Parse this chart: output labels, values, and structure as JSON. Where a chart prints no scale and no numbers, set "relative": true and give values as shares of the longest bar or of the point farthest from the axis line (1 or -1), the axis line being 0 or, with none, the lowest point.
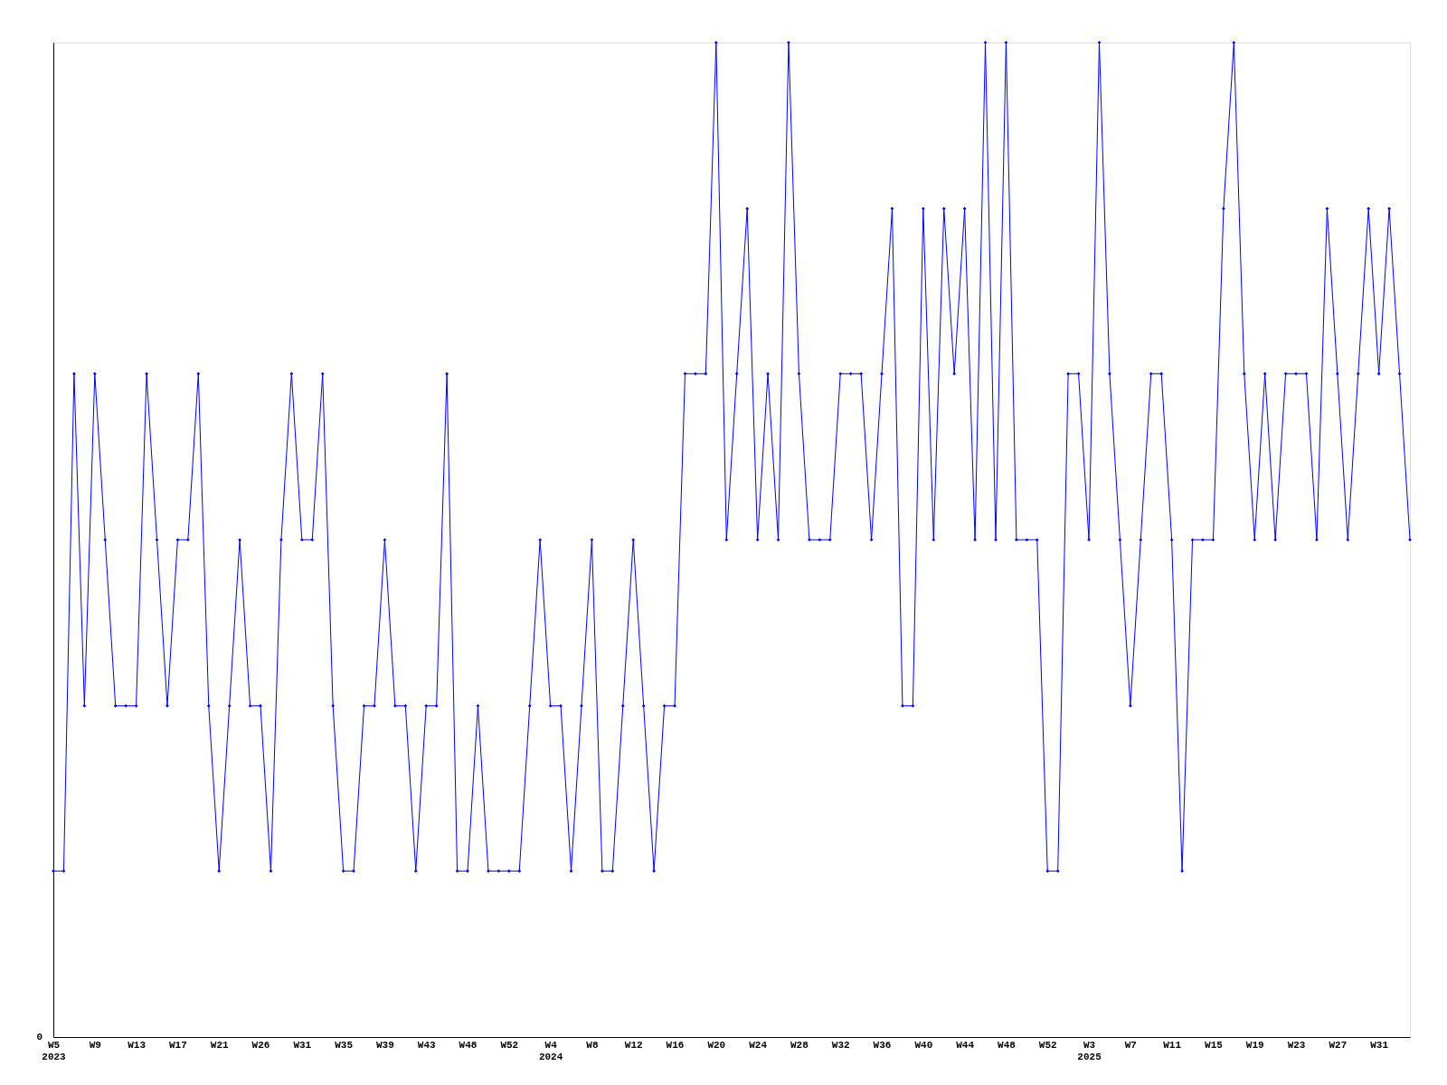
{
  "chart_data": {
    "type": "line",
    "relative": true,
    "annotations": [
      "0"
    ],
    "grid": false,
    "marker": "diamond",
    "line_style": "solid",
    "categories": [
      "W5\n2023",
      null,
      null,
      null,
      "W9",
      null,
      null,
      null,
      "W13",
      null,
      null,
      null,
      "W17",
      null,
      null,
      null,
      "W21",
      null,
      null,
      null,
      "W26",
      null,
      null,
      null,
      "W31",
      null,
      null,
      null,
      "W35",
      null,
      null,
      null,
      "W39",
      null,
      null,
      null,
      "W43",
      null,
      null,
      null,
      "W48",
      null,
      null,
      null,
      "W52",
      null,
      null,
      null,
      "W4\n2024",
      null,
      null,
      null,
      "W8",
      null,
      null,
      null,
      "W12",
      null,
      null,
      null,
      "W16",
      null,
      null,
      null,
      "W20",
      null,
      null,
      null,
      "W24",
      null,
      null,
      null,
      "W28",
      null,
      null,
      null,
      "W32",
      null,
      null,
      null,
      "W36",
      null,
      null,
      null,
      "W40",
      null,
      null,
      null,
      "W44",
      null,
      null,
      null,
      "W48",
      null,
      null,
      null,
      "W52",
      null,
      null,
      null,
      "W3\n2025",
      null,
      null,
      null,
      "W7",
      null,
      null,
      null,
      "W11",
      null,
      null,
      null,
      "W15",
      null,
      null,
      null,
      "W19",
      null,
      null,
      null,
      "W23",
      null,
      null,
      null,
      "W27",
      null,
      null,
      null,
      "W31",
      null,
      null,
      null
    ],
    "series": [
      {
        "color": "#0000ff",
        "values": [
          0.167,
          0.167,
          0.667,
          0.333,
          0.667,
          0.5,
          0.333,
          0.333,
          0.333,
          0.667,
          0.5,
          0.333,
          0.5,
          0.5,
          0.667,
          0.333,
          0.167,
          0.333,
          0.5,
          0.333,
          0.333,
          0.167,
          0.5,
          0.667,
          0.5,
          0.5,
          0.667,
          0.333,
          0.167,
          0.167,
          0.333,
          0.333,
          0.5,
          0.333,
          0.333,
          0.167,
          0.333,
          0.333,
          0.667,
          0.167,
          0.167,
          0.333,
          0.167,
          0.167,
          0.167,
          0.167,
          0.333,
          0.5,
          0.333,
          0.333,
          0.167,
          0.333,
          0.5,
          0.167,
          0.167,
          0.333,
          0.5,
          0.333,
          0.167,
          0.333,
          0.333,
          0.667,
          0.667,
          0.667,
          1,
          0.5,
          0.667,
          0.833,
          0.5,
          0.667,
          0.5,
          1,
          0.667,
          0.5,
          0.5,
          0.5,
          0.667,
          0.667,
          0.667,
          0.5,
          0.667,
          0.833,
          0.333,
          0.333,
          0.833,
          0.5,
          0.833,
          0.667,
          0.833,
          0.5,
          1,
          0.5,
          1,
          0.5,
          0.5,
          0.5,
          0.167,
          0.167,
          0.667,
          0.667,
          0.5,
          1,
          0.667,
          0.5,
          0.333,
          0.5,
          0.667,
          0.667,
          0.5,
          0.167,
          0.5,
          0.5,
          0.5,
          0.833,
          1,
          0.667,
          0.5,
          0.667,
          0.5,
          0.667,
          0.667,
          0.667,
          0.5,
          0.833,
          0.667,
          0.5,
          0.667,
          0.833,
          0.667,
          0.833,
          0.667,
          0.5
        ]
      }
    ]
  }
}
